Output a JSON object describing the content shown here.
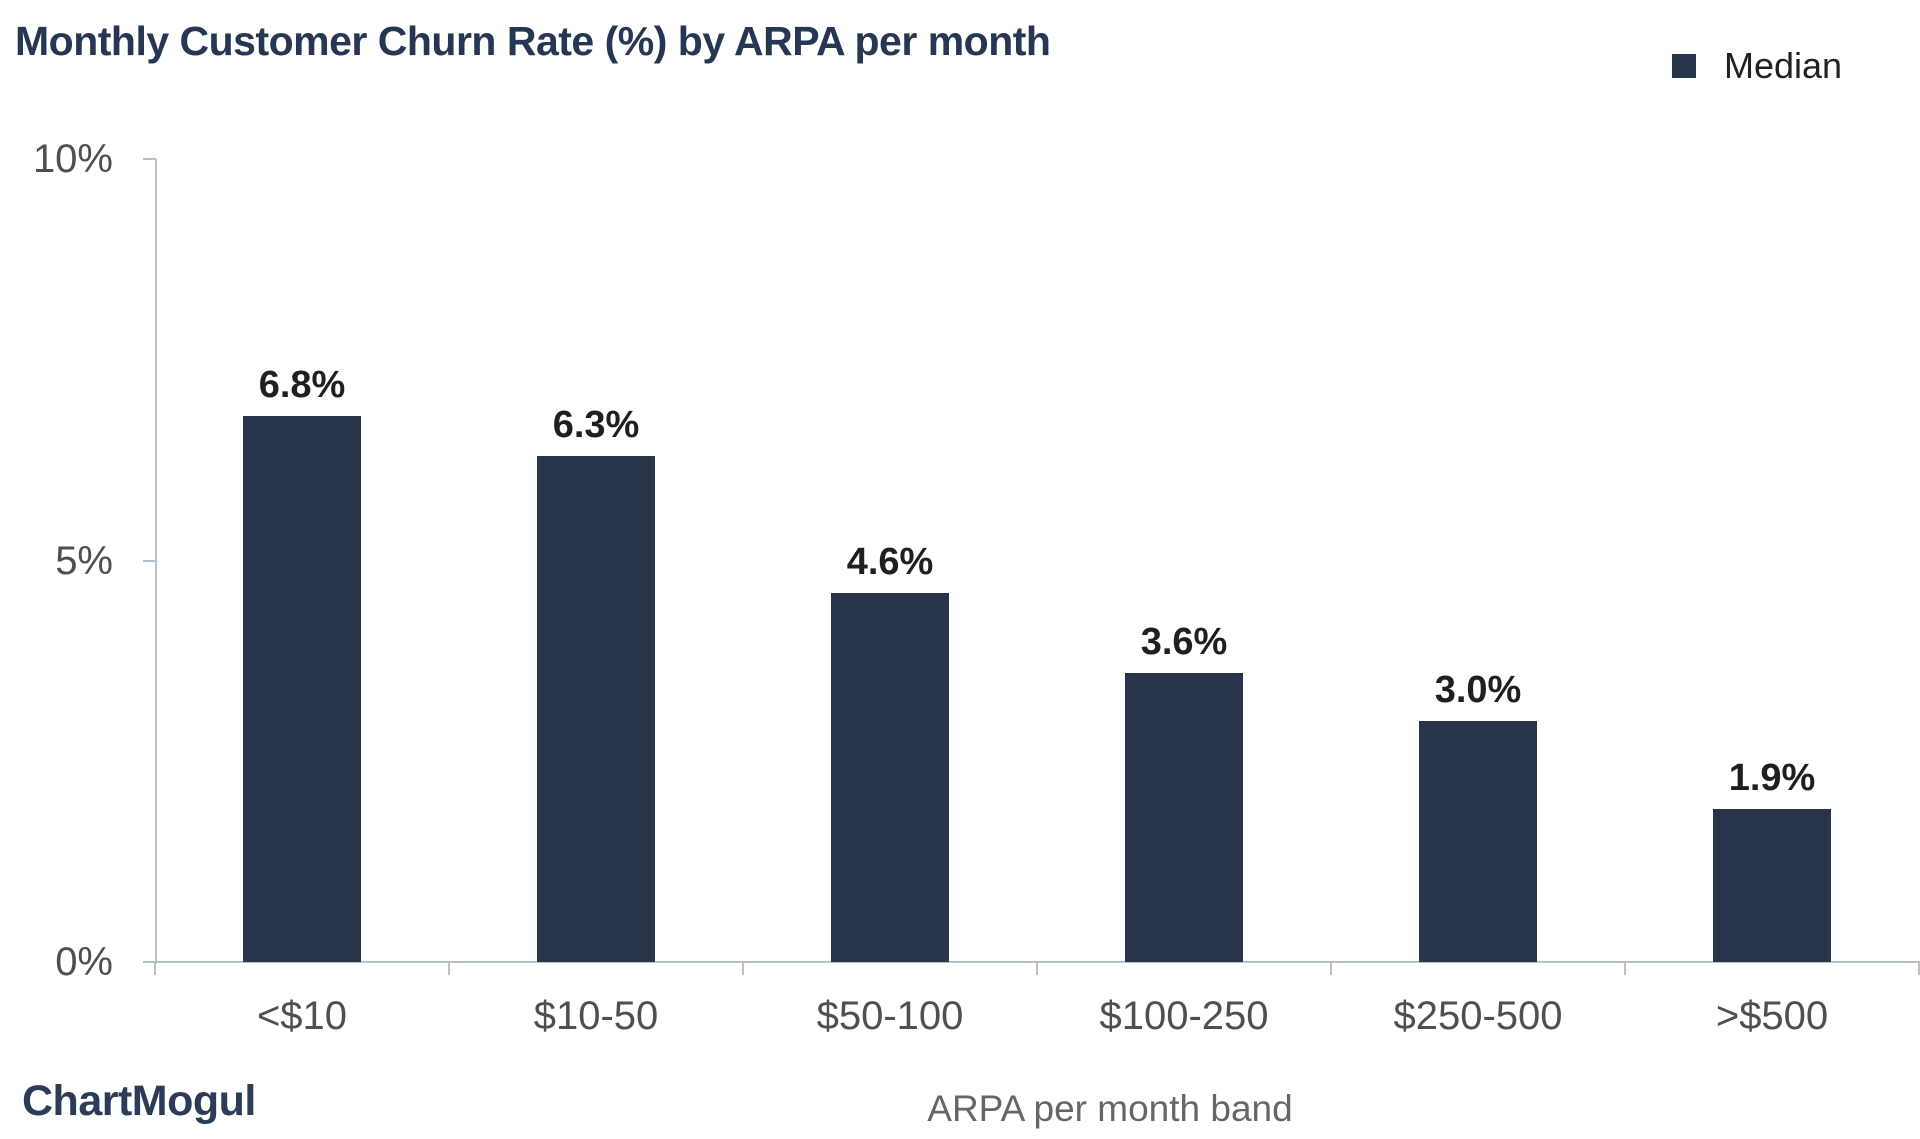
{
  "brand": {
    "logo_text": "ChartMogul"
  },
  "legend": {
    "position": "top-right",
    "items": [
      {
        "label": "Median",
        "swatch_color": "#273449"
      }
    ]
  },
  "chart_data": {
    "type": "bar",
    "title": "Monthly Customer Churn Rate (%) by ARPA per month",
    "categories": [
      "<$10",
      "$10-50",
      "$50-100",
      "$100-250",
      "$250-500",
      ">$500"
    ],
    "series": [
      {
        "name": "Median",
        "values": [
          6.8,
          6.3,
          4.6,
          3.6,
          3.0,
          1.9
        ]
      }
    ],
    "value_labels": [
      "6.8%",
      "6.3%",
      "4.6%",
      "3.6%",
      "3.0%",
      "1.9%"
    ],
    "xlabel": "ARPA per month band",
    "ylabel": "",
    "ylim": [
      0,
      10
    ],
    "yticks": [
      {
        "value": 0,
        "label": "0%"
      },
      {
        "value": 5,
        "label": "5%"
      },
      {
        "value": 10,
        "label": "10%"
      }
    ],
    "grid": false,
    "legend_position": "top-right"
  },
  "colors": {
    "background": "#ffffff",
    "bar": "#273449",
    "title": "#263754",
    "axis_line": "#b7c1cb",
    "tick_text": "#4f4f4f",
    "data_label": "#1f1f1f",
    "legend_text": "#212121",
    "axis_title": "#666666",
    "logo": "#2c3c58"
  }
}
